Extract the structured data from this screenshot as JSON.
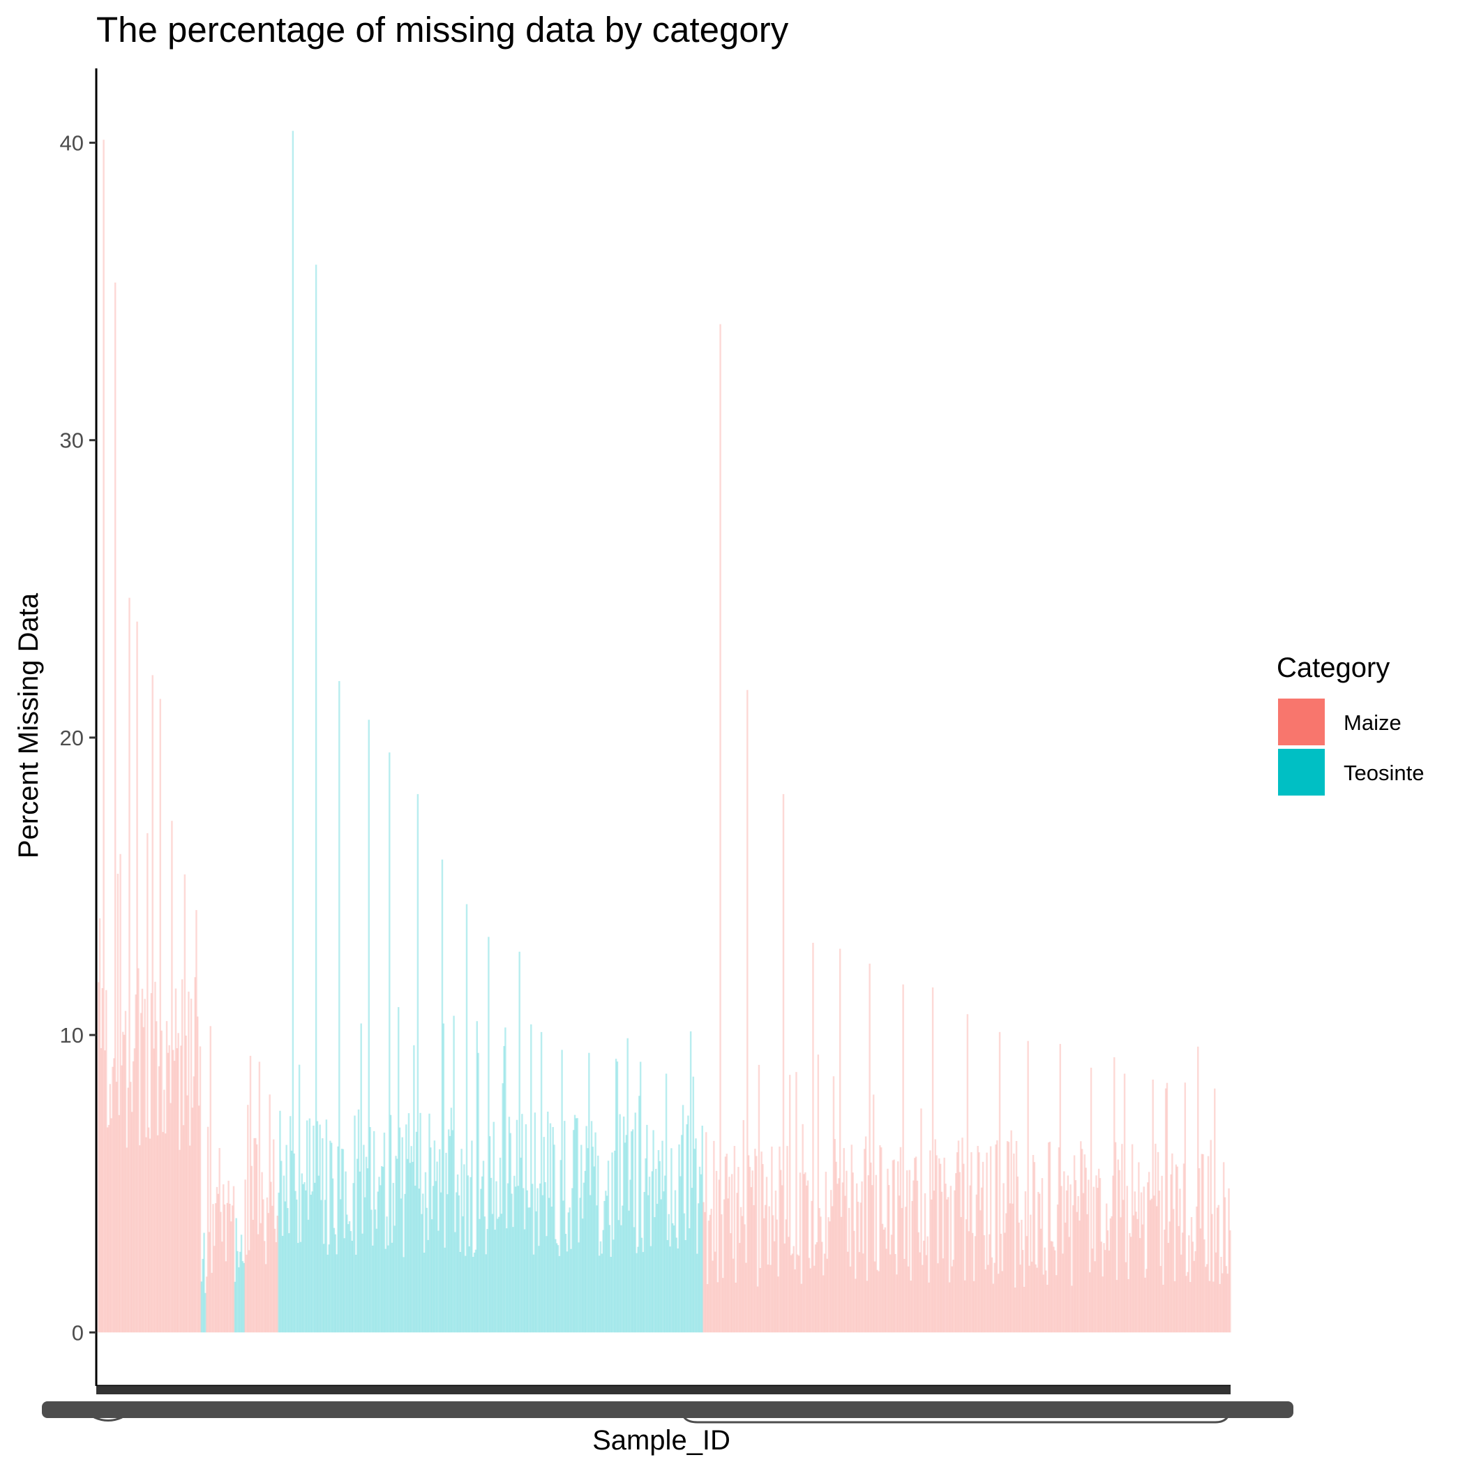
{
  "chart_data": {
    "type": "bar",
    "title": "The percentage of missing data by category",
    "xlabel": "Sample_ID",
    "ylabel": "Percent Missing Data",
    "ylim": [
      -1.8,
      42.5
    ],
    "yticks": [
      0,
      10,
      20,
      30,
      40
    ],
    "grid": false,
    "legend": {
      "title": "Category",
      "placement": "right",
      "entries": [
        {
          "name": "Maize",
          "color": "#F8766D"
        },
        {
          "name": "Teosinte",
          "color": "#00BFC4"
        }
      ]
    },
    "bar_alpha": 0.28,
    "segments": [
      {
        "category": "Maize",
        "count": 80,
        "typical": [
          6,
          12
        ],
        "peaks": [
          40.1,
          35.3,
          24.7,
          23.9,
          22.1,
          21.3,
          17.2,
          15.4,
          14.2
        ]
      },
      {
        "category": "Teosinte",
        "count": 4,
        "typical": [
          1,
          4.5
        ],
        "peaks": []
      },
      {
        "category": "Maize",
        "count": 22,
        "typical": [
          1.5,
          5
        ],
        "peaks": [
          10.3,
          6.2,
          5.1
        ]
      },
      {
        "category": "Teosinte",
        "count": 8,
        "typical": [
          1,
          5
        ],
        "peaks": []
      },
      {
        "category": "Maize",
        "count": 26,
        "typical": [
          2,
          7
        ],
        "peaks": [
          9.3,
          9.1,
          8.0
        ]
      },
      {
        "category": "Teosinte",
        "count": 330,
        "typical": [
          2.5,
          7.5
        ],
        "peaks": [
          40.4,
          35.9,
          21.9,
          20.6,
          19.5,
          18.1,
          15.9,
          14.4,
          13.3,
          12.8,
          10.1,
          9.5,
          9.4,
          9.2,
          9.1,
          8.7,
          8.6
        ]
      },
      {
        "category": "Maize",
        "count": 410,
        "typical": [
          1.5,
          6.5
        ],
        "peaks": [
          33.9,
          21.6,
          18.1,
          13.1,
          12.9,
          12.4,
          11.7,
          11.6,
          10.7,
          10.1,
          9.8,
          9.7,
          8.9,
          8.7,
          8.5,
          8.4,
          8.2
        ]
      }
    ]
  }
}
